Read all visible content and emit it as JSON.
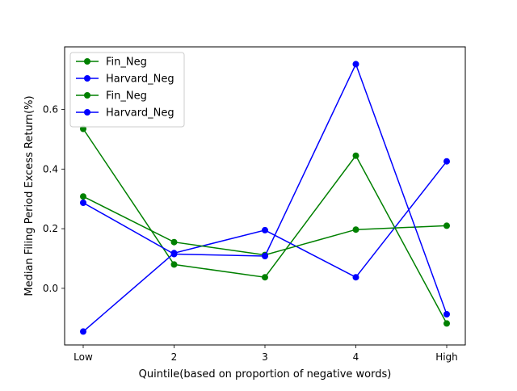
{
  "chart_data": {
    "type": "line",
    "title": "",
    "xlabel": "Quintile(based on proportion of negative words)",
    "ylabel": "Median Filing Period Excess Return(%)",
    "categories": [
      "Low",
      "2",
      "3",
      "4",
      "High"
    ],
    "ylim": [
      -0.19,
      0.81
    ],
    "yticks": [
      "0.0",
      "0.2",
      "0.4",
      "0.6"
    ],
    "ytick_values": [
      0.0,
      0.2,
      0.4,
      0.6
    ],
    "grid": false,
    "legend_position": "upper-left",
    "series": [
      {
        "name": "Fin_Neg",
        "color": "#008000",
        "values": [
          0.535,
          0.08,
          0.037,
          0.445,
          -0.118
        ]
      },
      {
        "name": "Harvard_Neg",
        "color": "#0000ff",
        "values": [
          -0.145,
          0.118,
          0.195,
          0.037,
          0.426
        ]
      },
      {
        "name": "Fin_Neg",
        "color": "#008000",
        "values": [
          0.308,
          0.155,
          0.112,
          0.197,
          0.21
        ]
      },
      {
        "name": "Harvard_Neg",
        "color": "#0000ff",
        "values": [
          0.287,
          0.115,
          0.108,
          0.752,
          -0.087
        ]
      }
    ]
  }
}
